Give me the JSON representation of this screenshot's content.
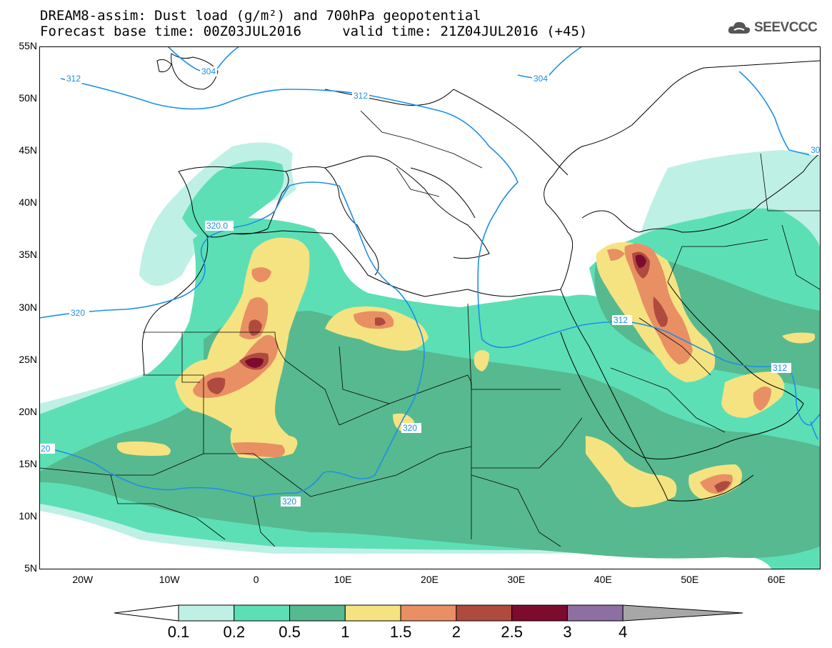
{
  "title": {
    "line1": "DREAM8-assim: Dust load (g/m²) and 700hPa geopotential",
    "line2": "Forecast base time: 00Z03JUL2016     valid time: 21Z04JUL2016 (+45)"
  },
  "logo": {
    "text": "SEEVCCC",
    "icon": "cloud-icon"
  },
  "axes": {
    "lat_labels": [
      "55N",
      "50N",
      "45N",
      "40N",
      "35N",
      "30N",
      "25N",
      "20N",
      "15N",
      "10N",
      "5N"
    ],
    "lon_labels": [
      "20W",
      "10W",
      "0",
      "10E",
      "20E",
      "30E",
      "40E",
      "50E",
      "60E"
    ],
    "lat_range": [
      5,
      55
    ],
    "lon_range": [
      -25,
      65
    ]
  },
  "contour_labels": {
    "z312_nw": "312",
    "z304_uk": "304",
    "z312_eu": "312",
    "z304_ru": "304",
    "z30x_e": "30",
    "z320_spain": "320.0",
    "z320_atl": "320",
    "z312_arab": "312",
    "z312_oman": "312",
    "z320_chad": "320",
    "z320_west": "20",
    "z320_sahel": "320"
  },
  "colorbar": {
    "levels": [
      "0.1",
      "0.2",
      "0.5",
      "1",
      "1.5",
      "2",
      "2.5",
      "3",
      "4"
    ],
    "colors": [
      "#bff0e6",
      "#5ddfb6",
      "#57b98f",
      "#f5e381",
      "#e98f64",
      "#ae4b3e",
      "#7c0b2d",
      "#8e6fa3",
      "#a7a7a7"
    ],
    "under_color": "#ffffff"
  },
  "colors": {
    "geopotential_contour": "#1e8fe6",
    "coastline": "#000000"
  }
}
